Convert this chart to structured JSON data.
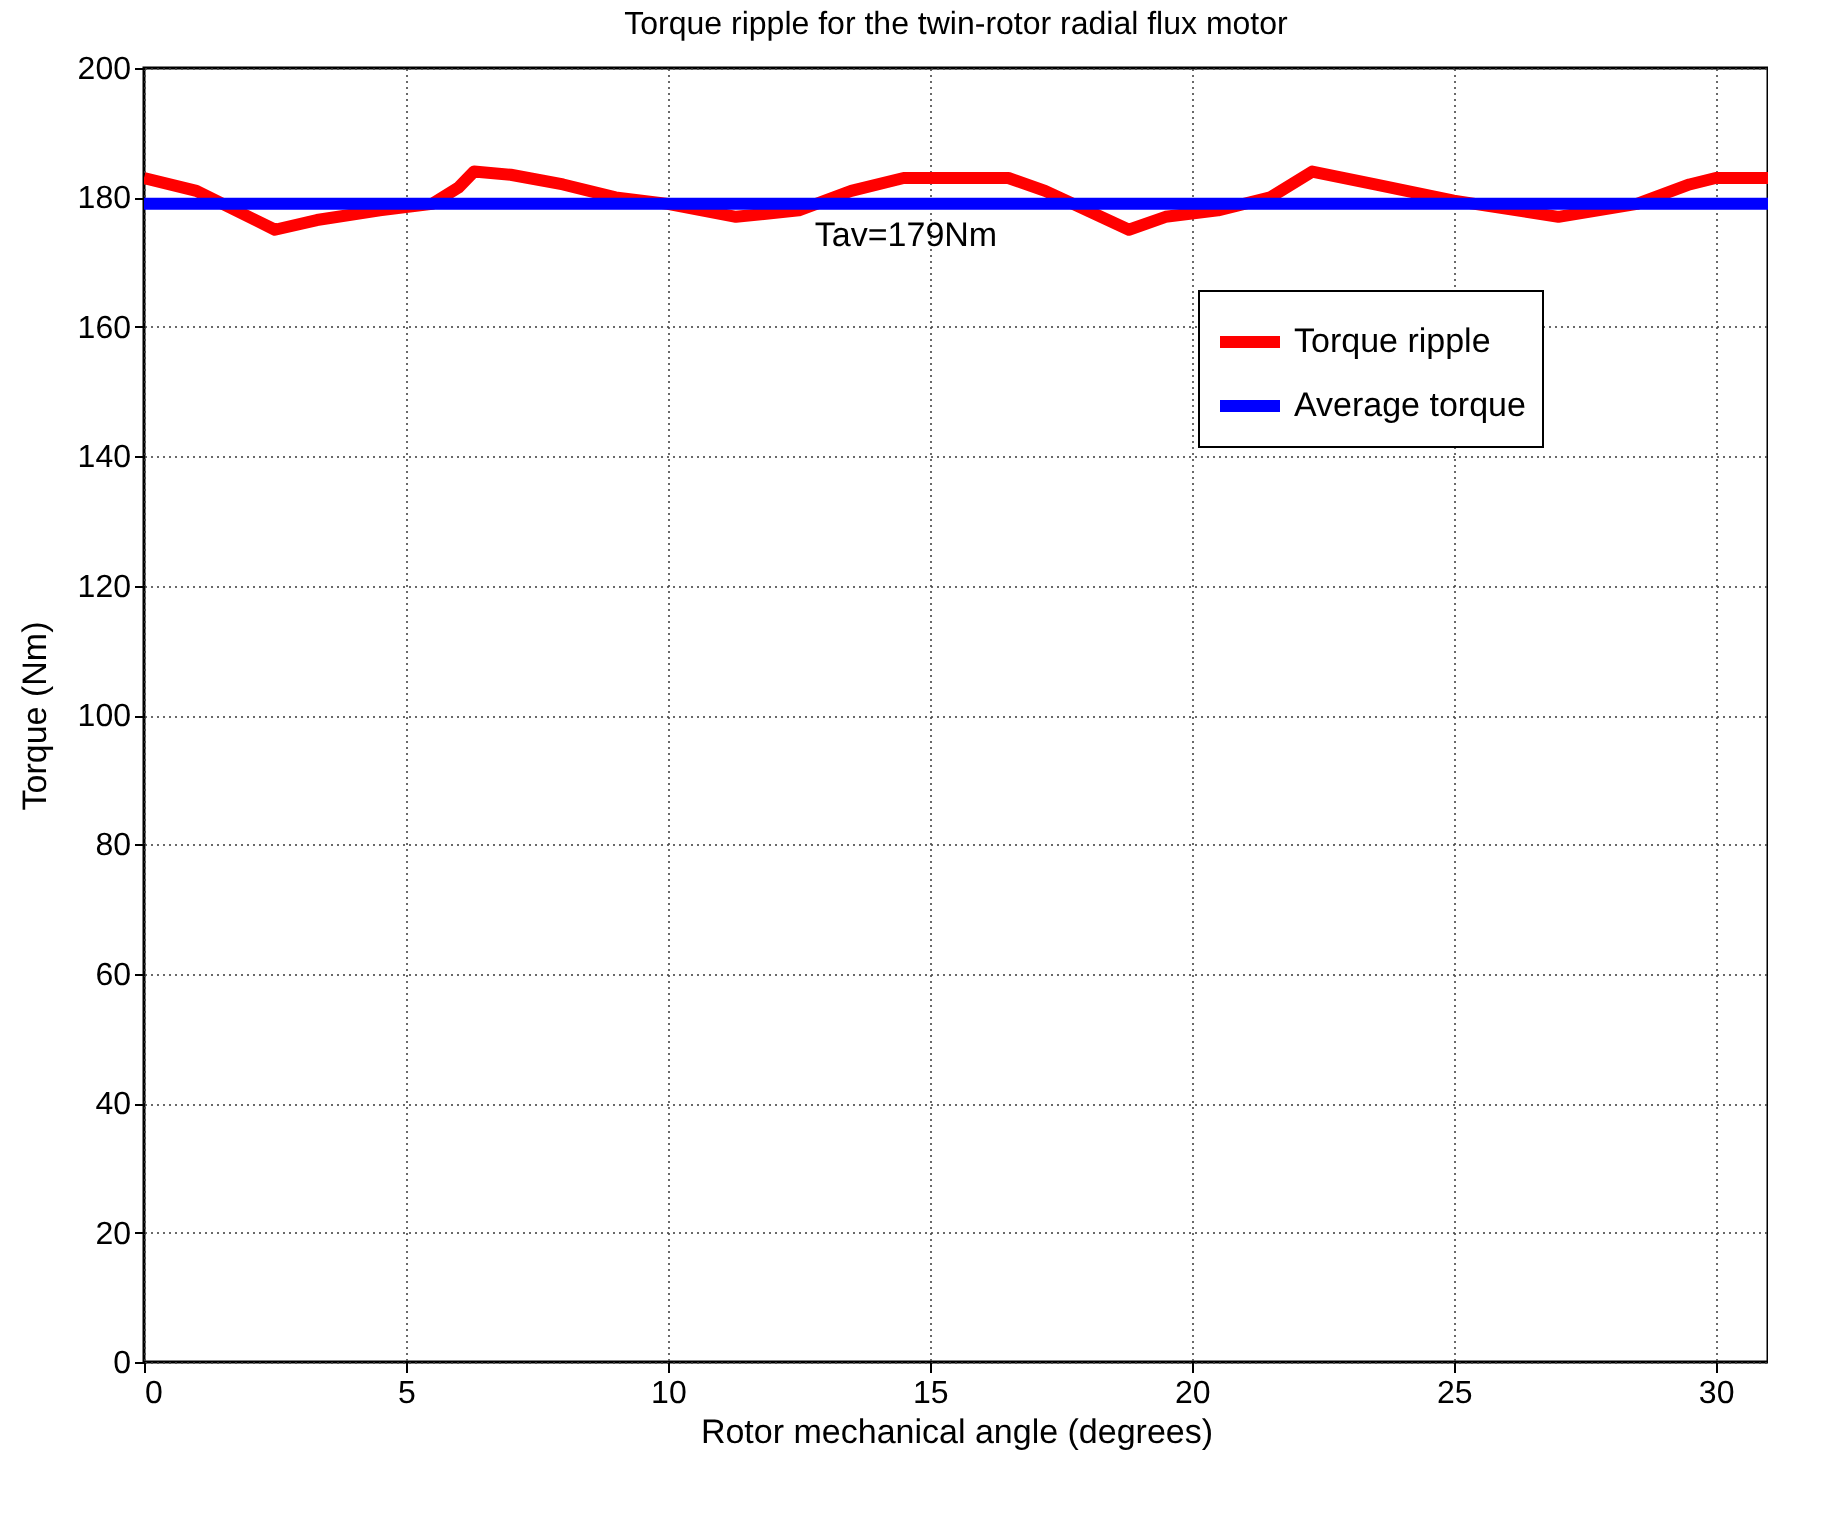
{
  "chart_data": {
    "type": "line",
    "title": "Torque ripple for the twin-rotor radial flux motor",
    "xlabel": "Rotor mechanical angle (degrees)",
    "ylabel": "Torque (Nm)",
    "xlim": [
      0,
      31
    ],
    "xticks": [
      0,
      5,
      10,
      15,
      20,
      25,
      30
    ],
    "ylim": [
      0,
      200
    ],
    "yticks": [
      0,
      20,
      40,
      60,
      80,
      100,
      120,
      140,
      160,
      180,
      200
    ],
    "grid": true,
    "legend": "top right",
    "line_style": "solid",
    "series": [
      {
        "name": "Torque ripple",
        "color": "#ff0000",
        "x": [
          0,
          1,
          2.5,
          3.3,
          4.5,
          5.5,
          6,
          6.3,
          7,
          8,
          9,
          10,
          11.3,
          12.5,
          13.5,
          14.5,
          16.5,
          17.2,
          18.8,
          19.5,
          20.5,
          21.5,
          22.3,
          23.5,
          25,
          27,
          28.5,
          29.5,
          30,
          31
        ],
        "values": [
          183,
          181,
          175,
          176.5,
          178,
          179,
          181.5,
          184,
          183.5,
          182,
          180,
          179,
          177,
          178,
          181,
          183,
          183,
          181,
          175,
          177,
          178,
          180,
          184,
          182,
          179.5,
          177,
          179,
          182,
          183,
          183
        ]
      },
      {
        "name": "Average torque",
        "color": "#0000ff",
        "x": [
          0,
          31
        ],
        "values": [
          179,
          179
        ]
      }
    ],
    "annotations": [
      "Tav=179Nm"
    ]
  }
}
